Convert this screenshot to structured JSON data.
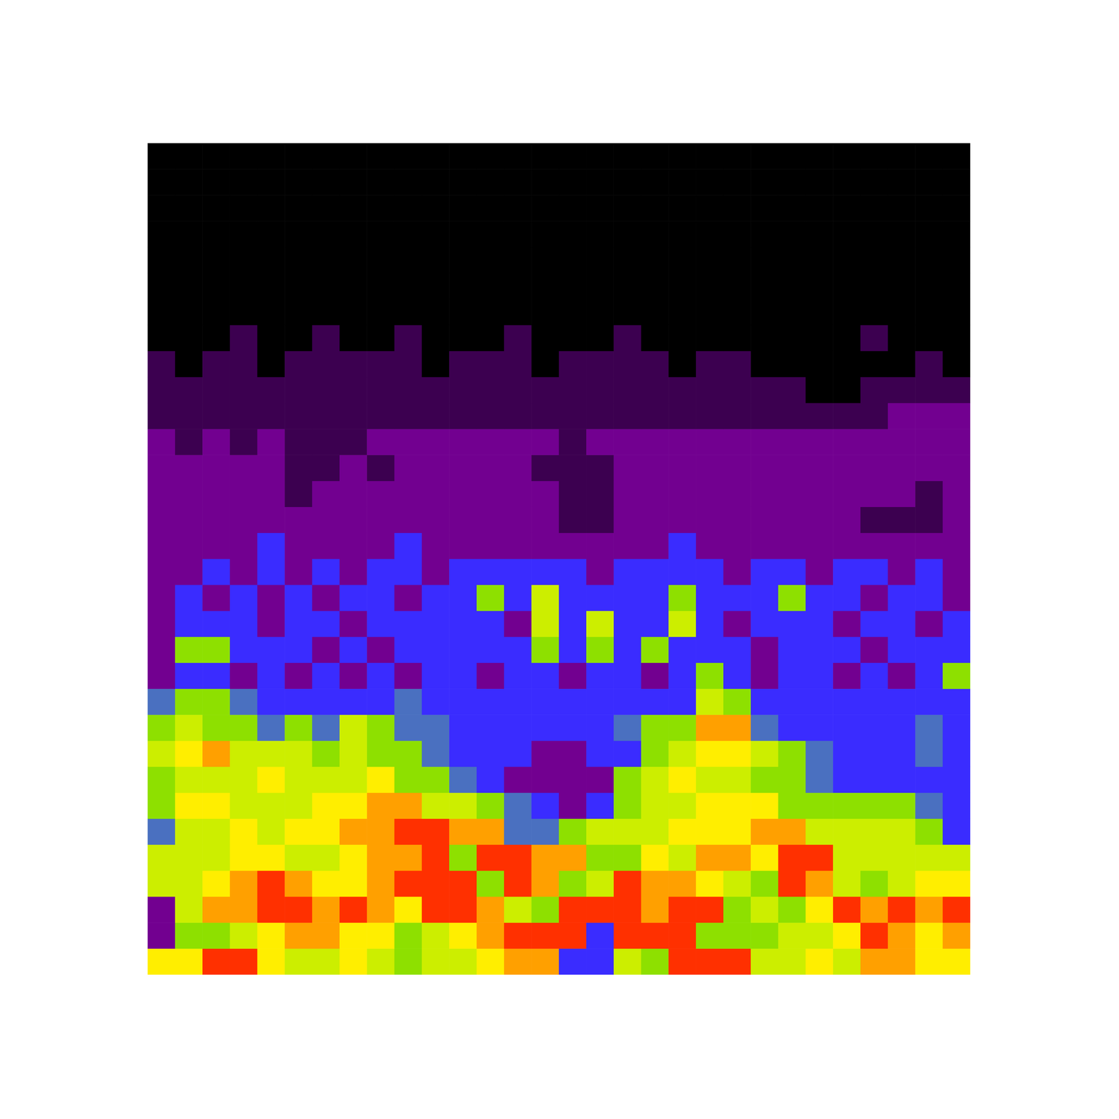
{
  "chart_data": {
    "type": "heatmap",
    "tick_labels": false,
    "zlim": [
      0,
      9
    ],
    "z": [
      [
        7,
        7,
        9,
        9,
        7,
        6,
        6,
        7,
        6,
        5,
        6,
        6,
        7,
        8,
        8,
        3,
        3,
        6,
        5,
        9,
        9,
        9,
        6,
        6,
        7,
        6,
        8,
        8,
        7,
        7
      ],
      [
        2,
        5,
        5,
        6,
        7,
        8,
        8,
        7,
        7,
        5,
        6,
        7,
        8,
        9,
        9,
        9,
        3,
        9,
        9,
        9,
        5,
        5,
        5,
        6,
        6,
        7,
        9,
        8,
        7,
        8
      ],
      [
        2,
        6,
        8,
        8,
        9,
        9,
        8,
        9,
        8,
        7,
        9,
        9,
        8,
        6,
        5,
        9,
        9,
        9,
        8,
        9,
        9,
        5,
        6,
        5,
        7,
        9,
        8,
        9,
        8,
        9
      ],
      [
        6,
        6,
        7,
        8,
        9,
        8,
        7,
        7,
        8,
        9,
        9,
        9,
        5,
        9,
        8,
        5,
        6,
        9,
        8,
        8,
        7,
        6,
        5,
        9,
        8,
        6,
        5,
        6,
        7,
        7
      ],
      [
        6,
        6,
        6,
        7,
        7,
        6,
        6,
        7,
        8,
        8,
        9,
        5,
        9,
        9,
        8,
        8,
        5,
        5,
        7,
        6,
        8,
        8,
        7,
        9,
        9,
        6,
        6,
        6,
        6,
        6
      ],
      [
        4,
        6,
        6,
        7,
        6,
        7,
        7,
        8,
        8,
        9,
        9,
        8,
        8,
        4,
        4,
        5,
        6,
        6,
        6,
        7,
        7,
        7,
        8,
        8,
        6,
        6,
        6,
        6,
        5,
        3
      ],
      [
        5,
        7,
        7,
        6,
        6,
        6,
        7,
        7,
        8,
        8,
        6,
        6,
        5,
        4,
        3,
        2,
        3,
        5,
        6,
        6,
        7,
        7,
        7,
        5,
        5,
        5,
        5,
        5,
        4,
        3
      ],
      [
        5,
        6,
        6,
        6,
        7,
        6,
        6,
        6,
        7,
        5,
        5,
        4,
        3,
        2,
        2,
        2,
        2,
        5,
        6,
        7,
        6,
        6,
        5,
        5,
        4,
        3,
        3,
        3,
        3,
        3
      ],
      [
        6,
        7,
        8,
        6,
        6,
        6,
        5,
        6,
        5,
        5,
        4,
        3,
        3,
        3,
        2,
        2,
        3,
        3,
        5,
        6,
        7,
        7,
        6,
        5,
        4,
        3,
        3,
        3,
        4,
        3
      ],
      [
        5,
        6,
        5,
        5,
        4,
        5,
        4,
        6,
        5,
        4,
        4,
        3,
        3,
        3,
        3,
        3,
        3,
        4,
        5,
        5,
        8,
        8,
        4,
        3,
        3,
        3,
        3,
        3,
        4,
        3
      ],
      [
        4,
        5,
        5,
        4,
        3,
        3,
        3,
        3,
        3,
        4,
        3,
        3,
        3,
        3,
        3,
        3,
        3,
        3,
        3,
        3,
        6,
        5,
        3,
        3,
        3,
        3,
        3,
        3,
        3,
        3
      ],
      [
        2,
        3,
        3,
        2,
        3,
        2,
        3,
        2,
        3,
        2,
        3,
        3,
        2,
        3,
        3,
        2,
        3,
        3,
        2,
        3,
        5,
        3,
        2,
        3,
        3,
        2,
        3,
        2,
        3,
        5
      ],
      [
        2,
        5,
        5,
        3,
        3,
        3,
        2,
        3,
        2,
        3,
        3,
        3,
        3,
        3,
        5,
        3,
        5,
        3,
        5,
        3,
        3,
        3,
        2,
        3,
        3,
        3,
        2,
        3,
        3,
        3
      ],
      [
        2,
        3,
        3,
        3,
        2,
        3,
        3,
        2,
        3,
        3,
        3,
        3,
        3,
        2,
        6,
        3,
        6,
        3,
        3,
        6,
        3,
        2,
        3,
        3,
        3,
        2,
        3,
        3,
        2,
        3
      ],
      [
        2,
        3,
        2,
        3,
        2,
        3,
        2,
        3,
        3,
        2,
        3,
        3,
        5,
        3,
        6,
        3,
        3,
        3,
        3,
        5,
        3,
        3,
        3,
        5,
        3,
        3,
        2,
        3,
        3,
        2
      ],
      [
        2,
        2,
        3,
        2,
        3,
        2,
        3,
        2,
        3,
        3,
        2,
        3,
        3,
        3,
        3,
        3,
        2,
        3,
        3,
        3,
        3,
        2,
        3,
        3,
        2,
        3,
        3,
        2,
        3,
        2
      ],
      [
        2,
        2,
        2,
        2,
        3,
        2,
        2,
        2,
        2,
        3,
        2,
        2,
        2,
        2,
        2,
        2,
        2,
        2,
        2,
        3,
        2,
        2,
        2,
        2,
        2,
        2,
        2,
        2,
        2,
        2
      ],
      [
        2,
        2,
        2,
        2,
        2,
        2,
        2,
        2,
        2,
        2,
        2,
        2,
        2,
        2,
        2,
        1,
        1,
        2,
        2,
        2,
        2,
        2,
        2,
        2,
        2,
        2,
        1,
        1,
        1,
        2
      ],
      [
        2,
        2,
        2,
        2,
        2,
        1,
        2,
        2,
        2,
        2,
        2,
        2,
        2,
        2,
        2,
        1,
        1,
        2,
        2,
        2,
        2,
        2,
        2,
        2,
        2,
        2,
        2,
        2,
        1,
        2
      ],
      [
        2,
        2,
        2,
        2,
        2,
        1,
        1,
        2,
        1,
        2,
        2,
        2,
        2,
        2,
        1,
        1,
        1,
        2,
        2,
        2,
        2,
        2,
        2,
        2,
        2,
        2,
        2,
        2,
        2,
        2
      ],
      [
        2,
        1,
        2,
        1,
        2,
        1,
        1,
        1,
        2,
        2,
        2,
        2,
        2,
        2,
        2,
        1,
        2,
        2,
        2,
        2,
        2,
        2,
        2,
        2,
        2,
        2,
        2,
        2,
        2,
        2
      ],
      [
        1,
        1,
        1,
        1,
        1,
        1,
        1,
        1,
        1,
        1,
        1,
        1,
        1,
        1,
        1,
        1,
        1,
        1,
        1,
        1,
        1,
        1,
        1,
        1,
        1,
        1,
        1,
        2,
        2,
        2
      ],
      [
        1,
        1,
        1,
        1,
        1,
        1,
        1,
        1,
        1,
        1,
        1,
        1,
        1,
        1,
        1,
        1,
        1,
        1,
        1,
        1,
        1,
        1,
        1,
        1,
        0,
        0,
        1,
        1,
        1,
        1
      ],
      [
        1,
        0,
        1,
        1,
        0,
        1,
        1,
        1,
        1,
        1,
        0,
        1,
        1,
        1,
        0,
        1,
        1,
        1,
        1,
        0,
        1,
        1,
        0,
        0,
        0,
        0,
        0,
        0,
        1,
        0
      ],
      [
        0,
        0,
        0,
        1,
        0,
        0,
        1,
        0,
        0,
        1,
        0,
        0,
        0,
        1,
        0,
        0,
        0,
        1,
        0,
        0,
        0,
        0,
        0,
        0,
        0,
        0,
        1,
        0,
        0,
        0
      ],
      [
        0,
        0,
        0,
        0,
        0,
        0,
        0,
        0,
        0,
        0,
        0,
        0,
        0,
        0,
        0,
        0,
        0,
        0,
        0,
        0,
        0,
        0,
        0,
        0,
        0,
        0,
        0,
        0,
        0,
        0
      ],
      [
        0,
        0,
        0,
        0,
        0,
        0,
        0,
        0,
        0,
        0,
        0,
        0,
        0,
        0,
        0,
        0,
        0,
        0,
        0,
        0,
        0,
        0,
        0,
        0,
        0,
        0,
        0,
        0,
        0,
        0
      ],
      [
        0,
        0,
        0,
        0,
        0,
        0,
        0,
        0,
        0,
        0,
        0,
        0,
        0,
        0,
        0,
        0,
        0,
        0,
        0,
        0,
        0,
        0,
        0,
        0,
        0,
        0,
        0,
        0,
        0,
        0
      ],
      [
        0,
        0,
        0,
        0,
        0,
        0,
        0,
        0,
        0,
        0,
        0,
        0,
        0,
        0,
        0,
        0,
        0,
        0,
        0,
        0,
        0,
        0,
        0,
        0,
        0,
        0,
        0,
        0,
        0,
        0
      ],
      [
        0,
        0,
        0,
        0,
        0,
        0,
        0,
        0,
        0,
        0,
        0,
        0,
        0,
        0,
        0,
        0,
        0,
        0,
        0,
        0,
        0,
        0,
        0,
        0,
        0,
        0,
        0,
        0,
        0,
        0
      ],
      [
        0,
        0,
        0,
        0,
        0,
        0,
        0,
        0,
        0,
        0,
        0,
        0,
        0,
        0,
        0,
        0,
        0,
        0,
        0,
        0,
        0,
        0,
        0,
        0,
        0,
        0,
        0,
        0,
        0,
        0
      ],
      [
        0,
        0,
        0,
        0,
        0,
        0,
        0,
        0,
        0,
        0,
        0,
        0,
        0,
        0,
        0,
        0,
        0,
        0,
        0,
        0,
        0,
        0,
        0,
        0,
        0,
        0,
        0,
        0,
        0,
        0
      ]
    ]
  }
}
